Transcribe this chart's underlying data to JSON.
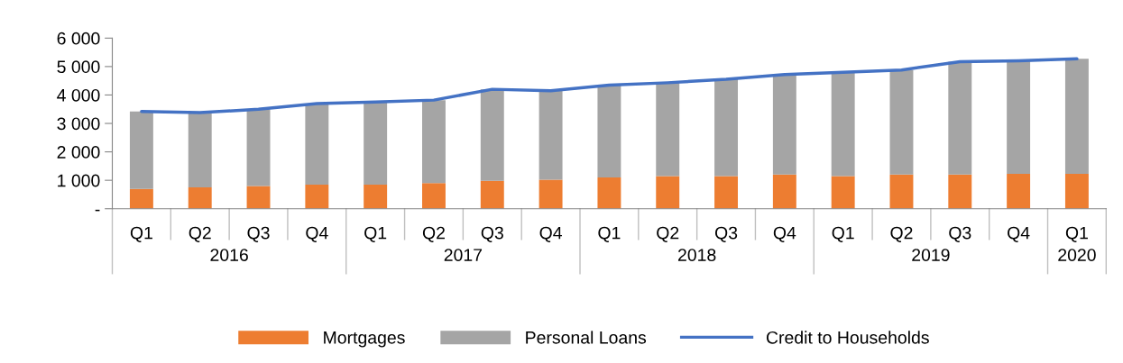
{
  "chart_data": {
    "type": "bar",
    "stacked": true,
    "categories": [
      "Q1",
      "Q2",
      "Q3",
      "Q4",
      "Q1",
      "Q2",
      "Q3",
      "Q4",
      "Q1",
      "Q2",
      "Q3",
      "Q4",
      "Q1",
      "Q2",
      "Q3",
      "Q4",
      "Q1"
    ],
    "annotations": [
      "2016",
      "2017",
      "2018",
      "2019",
      "2020"
    ],
    "series": [
      {
        "name": "Mortgages",
        "color": "#ed7d31",
        "values": [
          700,
          750,
          800,
          850,
          850,
          900,
          980,
          1020,
          1100,
          1150,
          1150,
          1200,
          1150,
          1200,
          1200,
          1230,
          1230
        ]
      },
      {
        "name": "Personal Loans",
        "color": "#a5a5a5",
        "values": [
          2720,
          2630,
          2700,
          2850,
          2900,
          2920,
          3220,
          3130,
          3250,
          3280,
          3400,
          3520,
          3650,
          3680,
          3970,
          3970,
          4040
        ]
      },
      {
        "name": "Credit to Households",
        "type": "line",
        "color": "#4472c4",
        "values": [
          3420,
          3380,
          3500,
          3700,
          3750,
          3820,
          4200,
          4150,
          4350,
          4430,
          4550,
          4720,
          4800,
          4880,
          5170,
          5200,
          5270
        ]
      }
    ],
    "ylim": [
      0,
      6000
    ],
    "yticks": [
      {
        "value": 0,
        "label": "-"
      },
      {
        "value": 1000,
        "label": "1 000"
      },
      {
        "value": 2000,
        "label": "2 000"
      },
      {
        "value": 3000,
        "label": "3 000"
      },
      {
        "value": 4000,
        "label": "4 000"
      },
      {
        "value": 5000,
        "label": "5 000"
      },
      {
        "value": 6000,
        "label": "6 000"
      }
    ],
    "grid": false,
    "legend": "bottom"
  }
}
